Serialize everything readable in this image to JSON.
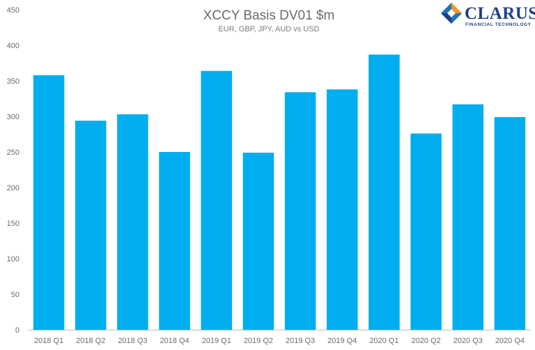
{
  "chart_data": {
    "type": "bar",
    "title": "XCCY Basis DV01 $m",
    "subtitle": "EUR, GBP, JPY, AUD vs USD",
    "xlabel": "",
    "ylabel": "",
    "ylim": [
      0,
      450
    ],
    "yticks": [
      0,
      50,
      100,
      150,
      200,
      250,
      300,
      350,
      400,
      450
    ],
    "grid": false,
    "bar_color": "#00aeef",
    "categories": [
      "2018 Q1",
      "2018 Q2",
      "2018 Q3",
      "2018 Q4",
      "2019 Q1",
      "2019 Q2",
      "2019 Q3",
      "2019 Q4",
      "2020 Q1",
      "2020 Q2",
      "2020 Q3",
      "2020 Q4"
    ],
    "values": [
      358,
      294,
      303,
      250,
      364,
      249,
      334,
      338,
      387,
      276,
      317,
      299
    ]
  },
  "logo": {
    "name": "CLARUS",
    "tagline": "FINANCIAL TECHNOLOGY",
    "icon": "clarus-diamond-icon",
    "colors": {
      "navy": "#1f3f86",
      "orange": "#f7941d",
      "blue": "#1c75bc"
    }
  }
}
